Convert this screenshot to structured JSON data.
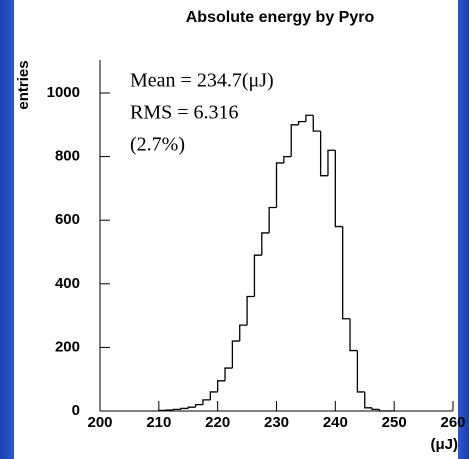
{
  "chart_data": {
    "type": "histogram",
    "title": "Absolute energy by Pyro",
    "y_label": "entries",
    "x_label": "(μJ)",
    "annotations": [
      "Mean = 234.7(μJ)",
      "RMS  = 6.316",
      "(2.7%)"
    ],
    "bins": [
      210,
      211.25,
      212.5,
      213.75,
      215,
      216.25,
      217.5,
      218.75,
      220,
      221.25,
      222.5,
      223.75,
      225,
      226.25,
      227.5,
      228.75,
      230,
      231.25,
      232.5,
      233.75,
      235,
      236.25,
      237.5,
      238.75,
      240,
      241.25,
      242.5,
      243.75,
      245,
      246.25,
      247.5,
      248.75,
      250
    ],
    "values": [
      2,
      3,
      5,
      8,
      12,
      20,
      35,
      60,
      95,
      135,
      220,
      270,
      360,
      490,
      560,
      640,
      780,
      800,
      900,
      910,
      930,
      880,
      740,
      820,
      580,
      290,
      190,
      60,
      10,
      5,
      0,
      0
    ],
    "color": "#000000",
    "xlim": [
      200,
      260
    ],
    "xticks": [
      200,
      210,
      220,
      230,
      240,
      250,
      260
    ],
    "ylim": [
      0,
      1050
    ],
    "yticks": [
      0,
      200,
      400,
      600,
      800,
      1000
    ]
  }
}
